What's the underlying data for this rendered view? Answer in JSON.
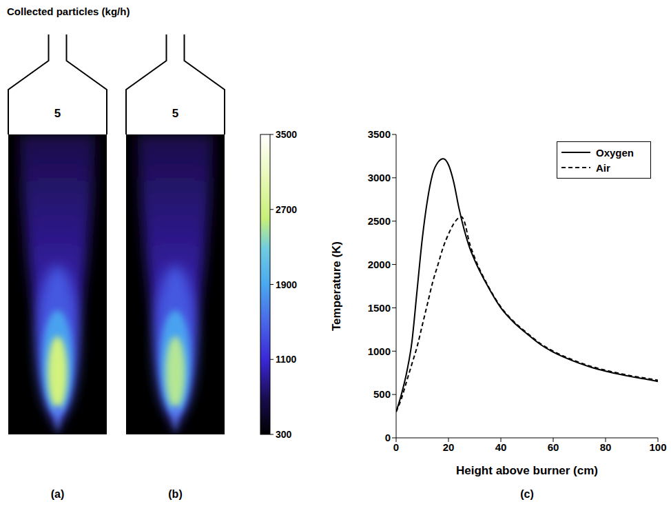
{
  "header": "Collected particles (kg/h)",
  "flame_panels": [
    {
      "label": "(a)",
      "collected": 5
    },
    {
      "label": "(b)",
      "collected": 5
    }
  ],
  "colorbar": {
    "range": [
      300,
      3500
    ],
    "ticks": [
      300,
      1100,
      1900,
      2700,
      3500
    ]
  },
  "chart_data": {
    "type": "line",
    "title": "(c)",
    "x_label": "Height above burner (cm)",
    "y_label": "Temperature (K)",
    "xlim": [
      0,
      100
    ],
    "xticks": [
      0,
      20,
      40,
      60,
      80,
      100
    ],
    "ylim": [
      0,
      3500
    ],
    "yticks": [
      0,
      500,
      1000,
      1500,
      2000,
      2500,
      3000,
      3500
    ],
    "legend": "top-right",
    "series": [
      {
        "name": "Oxygen",
        "color": "#000000",
        "line_style": "solid",
        "x": [
          0,
          2,
          4,
          6,
          8,
          10,
          12,
          14,
          16,
          18,
          20,
          22,
          24,
          26,
          28,
          30,
          35,
          40,
          45,
          50,
          55,
          60,
          65,
          70,
          75,
          80,
          85,
          90,
          95,
          100
        ],
        "values": [
          300,
          500,
          750,
          1100,
          1700,
          2300,
          2750,
          3050,
          3180,
          3220,
          3150,
          2950,
          2650,
          2400,
          2200,
          2050,
          1750,
          1500,
          1330,
          1200,
          1080,
          990,
          920,
          860,
          810,
          770,
          735,
          705,
          680,
          650
        ]
      },
      {
        "name": "Air",
        "color": "#000000",
        "line_style": "dashed",
        "x": [
          0,
          2,
          4,
          6,
          8,
          10,
          12,
          14,
          16,
          18,
          20,
          22,
          24,
          25,
          26,
          28,
          30,
          35,
          40,
          45,
          50,
          55,
          60,
          65,
          70,
          75,
          80,
          85,
          90,
          95,
          100
        ],
        "values": [
          300,
          450,
          650,
          850,
          1050,
          1300,
          1550,
          1800,
          2000,
          2200,
          2350,
          2470,
          2540,
          2550,
          2500,
          2250,
          2080,
          1760,
          1510,
          1340,
          1210,
          1090,
          1000,
          930,
          870,
          820,
          780,
          745,
          715,
          690,
          665
        ]
      }
    ]
  }
}
